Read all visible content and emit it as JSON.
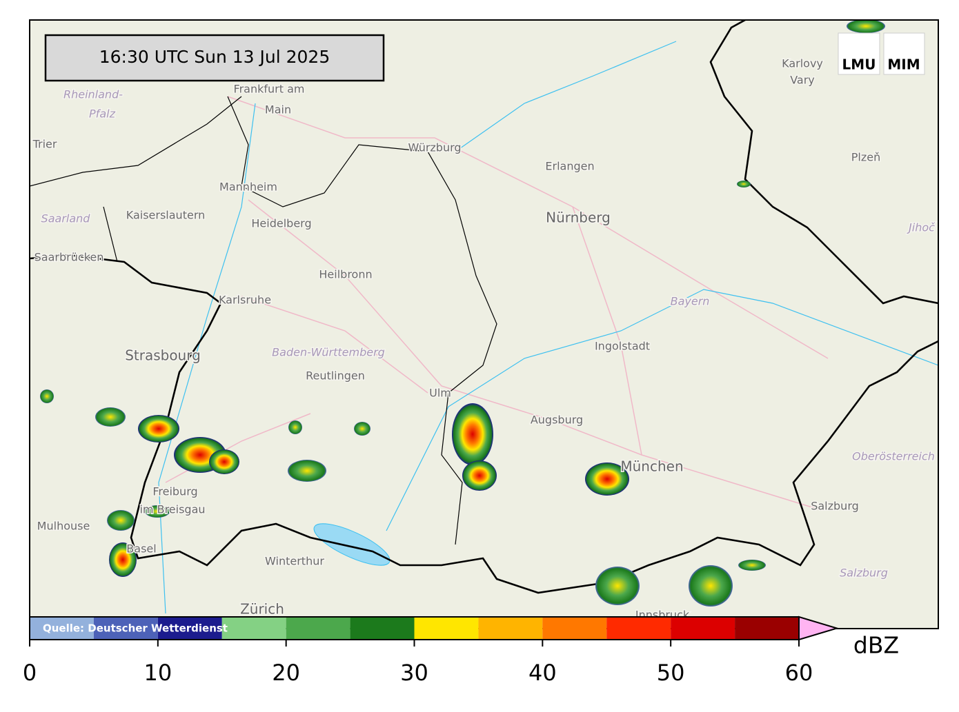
{
  "timestamp": "16:30 UTC  Sun 13 Jul 2025",
  "logos": [
    "LMU",
    "MIM"
  ],
  "source": "Quelle: Deutscher Wetterdienst",
  "places": [
    "Frankfurt am",
    "Main",
    "Rheinland-",
    "Pfalz",
    "Trier",
    "Würzburg",
    "Erlangen",
    "Mannheim",
    "Kaiserslautern",
    "Saarland",
    "Heidelberg",
    "Nürnberg",
    "Karlovy",
    "Vary",
    "Plzeň",
    "Jihoč",
    "Saarbrücken",
    "Heilbronn",
    "Karlsruhe",
    "Bayern",
    "Ingolstadt",
    "Strasbourg",
    "Baden-Württemberg",
    "Reutlingen",
    "Ulm",
    "Augsburg",
    "München",
    "Oberösterreich",
    "Freiburg",
    "im Breisgau",
    "Mulhouse",
    "Salzburg",
    "Salzburg",
    "Basel",
    "Winterthur",
    "Zürich",
    "Innsbruck"
  ],
  "colorbar": {
    "label": "dBZ",
    "lim": [
      0,
      60
    ],
    "bounds": [
      0,
      5,
      10,
      15,
      20,
      25,
      30,
      35,
      40,
      45,
      50,
      55,
      60
    ],
    "colors": [
      "#93b1dc",
      "#4d62b8",
      "#1c1c8e",
      "#84d184",
      "#4ca84c",
      "#1c7a1c",
      "#ffe600",
      "#ffb400",
      "#ff7800",
      "#ff2a00",
      "#dc0000",
      "#9a0000"
    ],
    "extend_color": "#ffb4f2",
    "ticks": [
      0,
      10,
      20,
      30,
      40,
      50,
      60
    ]
  }
}
